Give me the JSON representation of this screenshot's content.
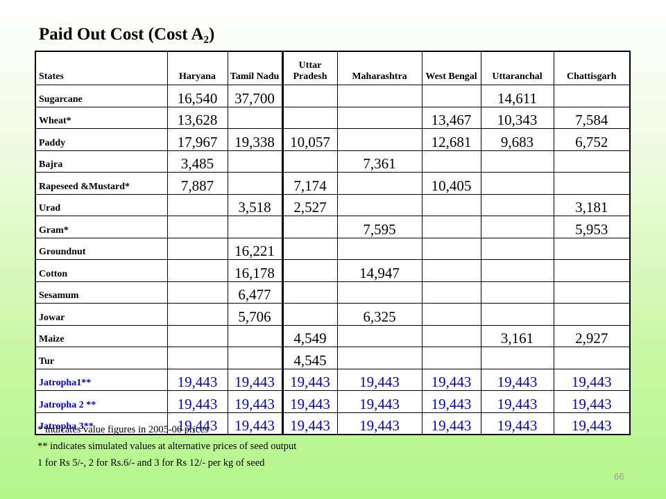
{
  "title": "Paid Out Cost (Cost A₂)",
  "table": {
    "headers": [
      "States",
      "Haryana",
      "Tamil Nadu",
      "Uttar Pradesh",
      "Maharashtra",
      "West Bengal",
      "Uttaranchal",
      "Chattisgarh"
    ],
    "rows": [
      {
        "label": "Sugarcane",
        "cells": [
          "16,540",
          "37,700",
          "",
          "",
          "",
          "14,611",
          ""
        ]
      },
      {
        "label": "Wheat*",
        "cells": [
          "13,628",
          "",
          "",
          "",
          "13,467",
          "10,343",
          "7,584"
        ]
      },
      {
        "label": "Paddy",
        "cells": [
          "17,967",
          "19,338",
          "10,057",
          "",
          "12,681",
          "9,683",
          "6,752"
        ]
      },
      {
        "label": "Bajra",
        "cells": [
          "3,485",
          "",
          "",
          "7,361",
          "",
          "",
          ""
        ]
      },
      {
        "label": "Rapeseed &Mustard*",
        "cells": [
          "7,887",
          "",
          "7,174",
          "",
          "10,405",
          "",
          ""
        ]
      },
      {
        "label": "Urad",
        "cells": [
          "",
          "3,518",
          "2,527",
          "",
          "",
          "",
          "3,181"
        ]
      },
      {
        "label": "Gram*",
        "cells": [
          "",
          "",
          "",
          "7,595",
          "",
          "",
          "5,953"
        ]
      },
      {
        "label": "Groundnut",
        "cells": [
          "",
          "16,221",
          "",
          "",
          "",
          "",
          ""
        ]
      },
      {
        "label": "Cotton",
        "cells": [
          "",
          "16,178",
          "",
          "14,947",
          "",
          "",
          ""
        ]
      },
      {
        "label": "Sesamum",
        "cells": [
          "",
          "6,477",
          "",
          "",
          "",
          "",
          ""
        ]
      },
      {
        "label": "Jowar",
        "cells": [
          "",
          "5,706",
          "",
          "6,325",
          "",
          "",
          ""
        ]
      },
      {
        "label": "Maize",
        "cells": [
          "",
          "",
          "4,549",
          "",
          "",
          "3,161",
          "2,927"
        ]
      },
      {
        "label": "Tur",
        "cells": [
          "",
          "",
          "4,545",
          "",
          "",
          "",
          ""
        ]
      },
      {
        "label": "Jatropha1**",
        "cells": [
          "19,443",
          "19,443",
          "19,443",
          "19,443",
          "19,443",
          "19,443",
          "19,443"
        ],
        "highlight": true
      },
      {
        "label": "Jatropha 2 **",
        "cells": [
          "19,443",
          "19,443",
          "19,443",
          "19,443",
          "19,443",
          "19,443",
          "19,443"
        ],
        "highlight": true
      },
      {
        "label": "Jatropha 3**",
        "cells": [
          "19,443",
          "19,443",
          "19,443",
          "19,443",
          "19,443",
          "19,443",
          "19,443"
        ],
        "highlight": true
      }
    ]
  },
  "notes": [
    "* indicates value figures in 2005-06 prices",
    "** indicates simulated values at alternative prices of seed output",
    "1 for Rs 5/-, 2 for Rs.6/- and 3 for Rs 12/- per kg of seed"
  ],
  "page_number": "66",
  "colors": {
    "highlight_text": "#0000cc",
    "background_top": "#ffffff",
    "background_bottom": "#b2f78a",
    "page_number": "#999999"
  }
}
